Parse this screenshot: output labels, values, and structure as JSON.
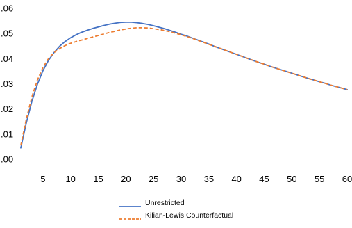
{
  "chart_data": {
    "type": "line",
    "title": "",
    "xlabel": "",
    "ylabel": "",
    "xlim": [
      1,
      60
    ],
    "ylim": [
      0,
      0.06
    ],
    "x_ticks": [
      5,
      10,
      15,
      20,
      25,
      30,
      35,
      40,
      45,
      50,
      55,
      60
    ],
    "x_tick_labels": [
      "5",
      "10",
      "15",
      "20",
      "25",
      "30",
      "35",
      "40",
      "45",
      "50",
      "55",
      "60"
    ],
    "y_ticks": [
      0,
      0.01,
      0.02,
      0.03,
      0.04,
      0.05,
      0.06
    ],
    "y_tick_labels": [
      ".00",
      ".01",
      ".02",
      ".03",
      ".04",
      ".05",
      ".06"
    ],
    "grid": false,
    "legend_position": "bottom-center",
    "series": [
      {
        "name": "Unrestricted",
        "color": "#4472C4",
        "style": "solid",
        "x": [
          1,
          2,
          3,
          4,
          5,
          6,
          7,
          8,
          9,
          10,
          11,
          12,
          13,
          14,
          15,
          16,
          17,
          18,
          19,
          20,
          21,
          22,
          23,
          24,
          25,
          26,
          27,
          28,
          29,
          30,
          31,
          32,
          33,
          34,
          35,
          36,
          37,
          38,
          39,
          40,
          41,
          42,
          43,
          44,
          45,
          46,
          47,
          48,
          49,
          50,
          51,
          52,
          53,
          54,
          55,
          56,
          57,
          58,
          59,
          60
        ],
        "y": [
          0.0045,
          0.0145,
          0.023,
          0.0298,
          0.0352,
          0.0393,
          0.0424,
          0.0449,
          0.0468,
          0.0483,
          0.0495,
          0.0505,
          0.0513,
          0.052,
          0.0526,
          0.0532,
          0.0537,
          0.0541,
          0.0544,
          0.0545,
          0.0545,
          0.0543,
          0.054,
          0.0536,
          0.0531,
          0.0525,
          0.0519,
          0.0512,
          0.0505,
          0.0497,
          0.049,
          0.0482,
          0.0474,
          0.0466,
          0.0458,
          0.0449,
          0.0441,
          0.0433,
          0.0425,
          0.0417,
          0.0409,
          0.0401,
          0.0393,
          0.0385,
          0.0378,
          0.037,
          0.0363,
          0.0356,
          0.0349,
          0.0342,
          0.0335,
          0.0328,
          0.0321,
          0.0315,
          0.0308,
          0.0302,
          0.0295,
          0.0289,
          0.0283,
          0.0277
        ]
      },
      {
        "name": "Kilian-Lewis Counterfactual",
        "color": "#ED7D31",
        "style": "dashed",
        "x": [
          1,
          2,
          3,
          4,
          5,
          6,
          7,
          8,
          9,
          10,
          11,
          12,
          13,
          14,
          15,
          16,
          17,
          18,
          19,
          20,
          21,
          22,
          23,
          24,
          25,
          26,
          27,
          28,
          29,
          30,
          31,
          32,
          33,
          34,
          35,
          36,
          37,
          38,
          39,
          40,
          41,
          42,
          43,
          44,
          45,
          46,
          47,
          48,
          49,
          50,
          51,
          52,
          53,
          54,
          55,
          56,
          57,
          58,
          59,
          60
        ],
        "y": [
          0.0055,
          0.016,
          0.0248,
          0.0315,
          0.0365,
          0.04,
          0.0424,
          0.044,
          0.0452,
          0.0461,
          0.0468,
          0.0474,
          0.048,
          0.0486,
          0.0492,
          0.0498,
          0.0504,
          0.0509,
          0.0514,
          0.0518,
          0.0521,
          0.0523,
          0.0523,
          0.0522,
          0.0519,
          0.0516,
          0.0512,
          0.0507,
          0.0501,
          0.0495,
          0.0488,
          0.0481,
          0.0473,
          0.0465,
          0.0457,
          0.0449,
          0.0441,
          0.0433,
          0.0425,
          0.0417,
          0.0409,
          0.0401,
          0.0393,
          0.0385,
          0.0378,
          0.037,
          0.0363,
          0.0356,
          0.0349,
          0.0342,
          0.0335,
          0.0328,
          0.0321,
          0.0315,
          0.0308,
          0.0302,
          0.0295,
          0.0289,
          0.0283,
          0.0277
        ]
      }
    ]
  }
}
